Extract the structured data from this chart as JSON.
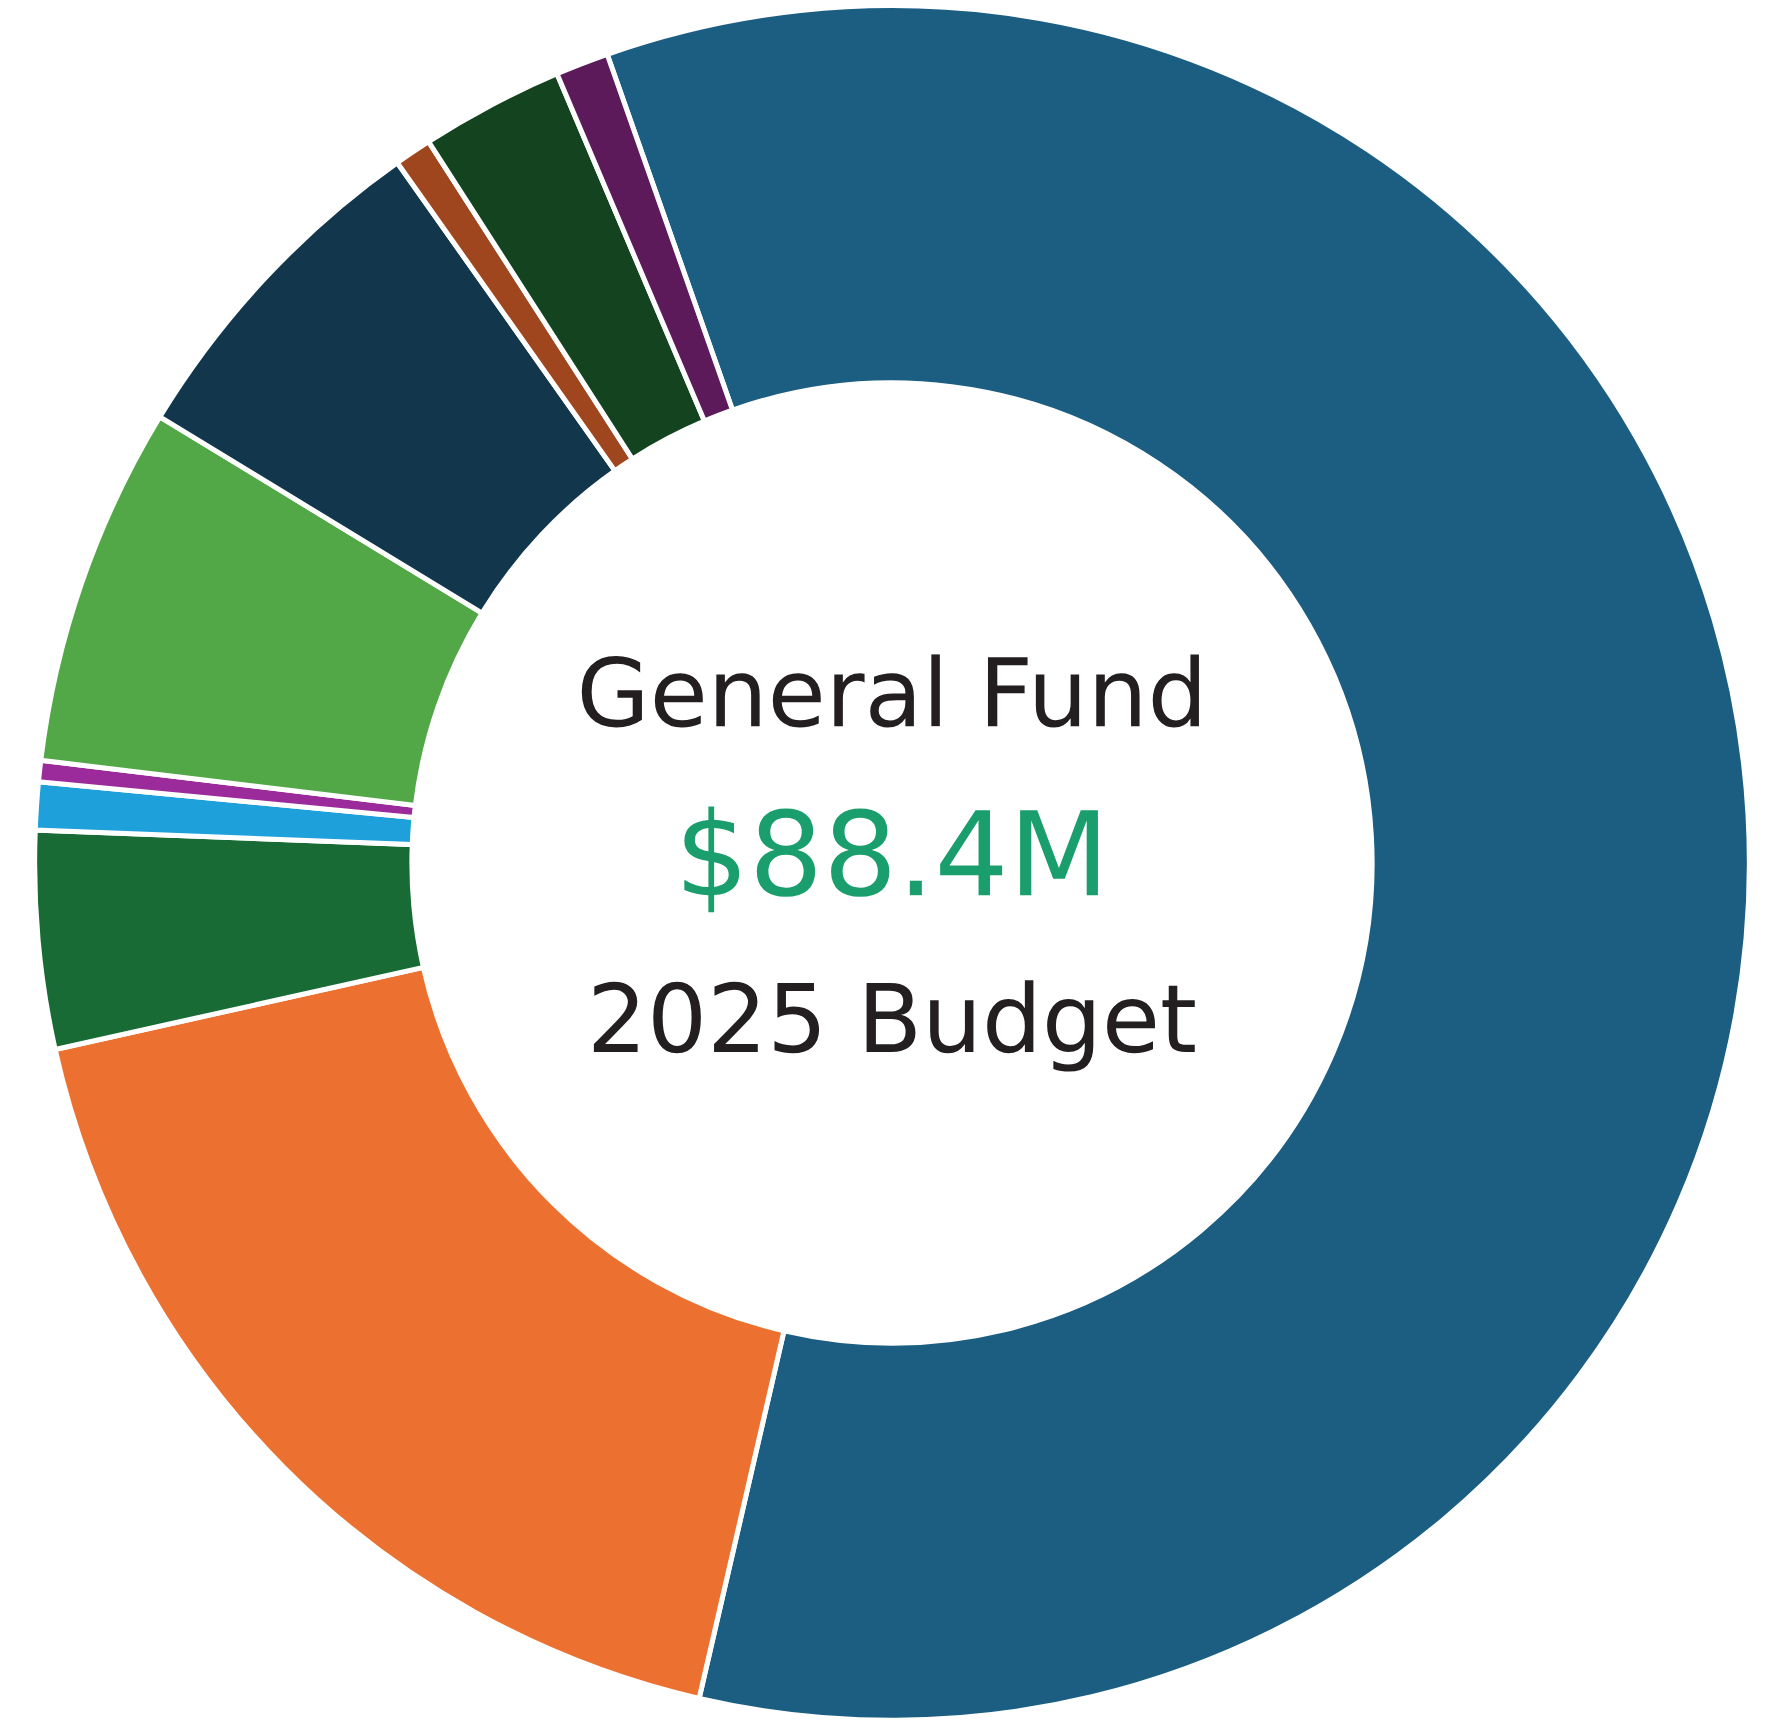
{
  "chart_data": {
    "type": "donut",
    "title": "General Fund",
    "subtitle": "$88.4M",
    "annotations": [
      "2025 Budget"
    ],
    "categories": [
      null,
      null,
      null,
      null,
      null,
      null,
      null,
      null,
      null,
      null
    ],
    "values": [
      59.0,
      17.9,
      4.1,
      0.9,
      0.4,
      6.8,
      6.5,
      0.7,
      2.7,
      1.0
    ],
    "colors": [
      "#1b5e82",
      "#ec7130",
      "#196b35",
      "#1ea0db",
      "#9b2a9a",
      "#52a846",
      "#12374d",
      "#a0461e",
      "#13441f",
      "#5c1a5a"
    ]
  }
}
